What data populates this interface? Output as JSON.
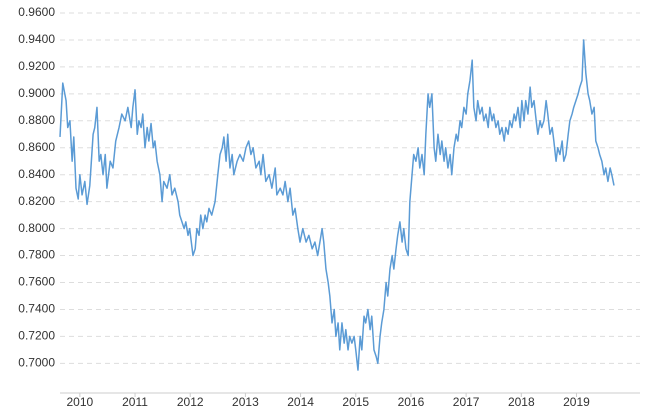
{
  "chart_data": {
    "type": "line",
    "color": "#5b9bd5",
    "grid": true,
    "ylim": [
      0.678,
      0.96
    ],
    "yticks": [
      {
        "value": 0.7,
        "label": "0.7000"
      },
      {
        "value": 0.72,
        "label": "0.7200"
      },
      {
        "value": 0.74,
        "label": "0.7400"
      },
      {
        "value": 0.76,
        "label": "0.7600"
      },
      {
        "value": 0.78,
        "label": "0.7800"
      },
      {
        "value": 0.8,
        "label": "0.8000"
      },
      {
        "value": 0.82,
        "label": "0.8200"
      },
      {
        "value": 0.84,
        "label": "0.8400"
      },
      {
        "value": 0.86,
        "label": "0.8600"
      },
      {
        "value": 0.88,
        "label": "0.8800"
      },
      {
        "value": 0.9,
        "label": "0.9000"
      },
      {
        "value": 0.92,
        "label": "0.9200"
      },
      {
        "value": 0.94,
        "label": "0.9400"
      },
      {
        "value": 0.96,
        "label": "0.9600"
      }
    ],
    "xlim": [
      2009.64,
      2019.68
    ],
    "xticks": [
      2010,
      2011,
      2012,
      2013,
      2014,
      2015,
      2016,
      2017,
      2018,
      2019
    ],
    "x": [
      2009.64,
      2009.69,
      2009.75,
      2009.78,
      2009.82,
      2009.86,
      2009.89,
      2009.93,
      2009.97,
      2010.0,
      2010.04,
      2010.09,
      2010.13,
      2010.18,
      2010.24,
      2010.27,
      2010.31,
      2010.35,
      2010.38,
      2010.42,
      2010.46,
      2010.49,
      2010.55,
      2010.6,
      2010.65,
      2010.71,
      2010.76,
      2010.82,
      2010.87,
      2010.93,
      2010.96,
      2011.0,
      2011.04,
      2011.07,
      2011.11,
      2011.14,
      2011.18,
      2011.22,
      2011.25,
      2011.29,
      2011.33,
      2011.36,
      2011.4,
      2011.45,
      2011.49,
      2011.52,
      2011.58,
      2011.63,
      2011.67,
      2011.72,
      2011.78,
      2011.81,
      2011.85,
      2011.89,
      2011.92,
      2011.96,
      2011.99,
      2012.05,
      2012.09,
      2012.12,
      2012.16,
      2012.19,
      2012.23,
      2012.27,
      2012.3,
      2012.34,
      2012.39,
      2012.45,
      2012.5,
      2012.54,
      2012.58,
      2012.61,
      2012.65,
      2012.68,
      2012.72,
      2012.76,
      2012.79,
      2012.85,
      2012.9,
      2012.96,
      2013.01,
      2013.06,
      2013.1,
      2013.14,
      2013.19,
      2013.25,
      2013.28,
      2013.32,
      2013.37,
      2013.43,
      2013.48,
      2013.54,
      2013.57,
      2013.63,
      2013.68,
      2013.72,
      2013.77,
      2013.81,
      2013.86,
      2013.9,
      2013.95,
      2013.99,
      2014.04,
      2014.1,
      2014.15,
      2014.21,
      2014.26,
      2014.31,
      2014.35,
      2014.39,
      2014.42,
      2014.46,
      2014.5,
      2014.53,
      2014.57,
      2014.61,
      2014.64,
      2014.68,
      2014.71,
      2014.75,
      2014.79,
      2014.82,
      2014.86,
      2014.89,
      2014.93,
      2014.97,
      2015.0,
      2015.04,
      2015.08,
      2015.11,
      2015.15,
      2015.18,
      2015.22,
      2015.26,
      2015.29,
      2015.33,
      2015.37,
      2015.4,
      2015.44,
      2015.47,
      2015.51,
      2015.55,
      2015.58,
      2015.62,
      2015.66,
      2015.69,
      2015.73,
      2015.76,
      2015.8,
      2015.84,
      2015.87,
      2015.91,
      2015.95,
      2015.98,
      2016.02,
      2016.05,
      2016.09,
      2016.13,
      2016.16,
      2016.2,
      2016.24,
      2016.27,
      2016.31,
      2016.34,
      2016.38,
      2016.42,
      2016.45,
      2016.49,
      2016.53,
      2016.56,
      2016.6,
      2016.63,
      2016.67,
      2016.71,
      2016.74,
      2016.78,
      2016.82,
      2016.85,
      2016.89,
      2016.92,
      2016.96,
      2017.0,
      2017.03,
      2017.07,
      2017.11,
      2017.14,
      2017.18,
      2017.21,
      2017.25,
      2017.29,
      2017.32,
      2017.36,
      2017.4,
      2017.43,
      2017.47,
      2017.5,
      2017.54,
      2017.58,
      2017.61,
      2017.65,
      2017.69,
      2017.72,
      2017.76,
      2017.79,
      2017.83,
      2017.87,
      2017.9,
      2017.94,
      2017.98,
      2018.01,
      2018.05,
      2018.08,
      2018.12,
      2018.16,
      2018.19,
      2018.23,
      2018.27,
      2018.3,
      2018.34,
      2018.37,
      2018.41,
      2018.45,
      2018.48,
      2018.52,
      2018.56,
      2018.59,
      2018.63,
      2018.66,
      2018.7,
      2018.74,
      2018.77,
      2018.81,
      2018.85,
      2018.88,
      2018.92,
      2018.95,
      2018.99,
      2019.03,
      2019.06,
      2019.1,
      2019.13,
      2019.17,
      2019.21,
      2019.24,
      2019.28,
      2019.32,
      2019.35,
      2019.39,
      2019.42,
      2019.46,
      2019.5,
      2019.53,
      2019.57,
      2019.61,
      2019.64,
      2019.68
    ],
    "values": [
      0.868,
      0.908,
      0.895,
      0.875,
      0.88,
      0.85,
      0.868,
      0.83,
      0.822,
      0.84,
      0.825,
      0.835,
      0.818,
      0.832,
      0.87,
      0.875,
      0.89,
      0.85,
      0.855,
      0.84,
      0.855,
      0.83,
      0.85,
      0.845,
      0.865,
      0.875,
      0.885,
      0.88,
      0.89,
      0.875,
      0.89,
      0.903,
      0.87,
      0.88,
      0.875,
      0.885,
      0.86,
      0.875,
      0.865,
      0.878,
      0.86,
      0.865,
      0.85,
      0.84,
      0.82,
      0.835,
      0.83,
      0.84,
      0.825,
      0.83,
      0.82,
      0.81,
      0.805,
      0.8,
      0.805,
      0.795,
      0.8,
      0.78,
      0.785,
      0.8,
      0.795,
      0.81,
      0.8,
      0.81,
      0.805,
      0.815,
      0.81,
      0.82,
      0.84,
      0.855,
      0.86,
      0.868,
      0.85,
      0.87,
      0.845,
      0.855,
      0.84,
      0.85,
      0.855,
      0.85,
      0.86,
      0.865,
      0.855,
      0.86,
      0.845,
      0.85,
      0.84,
      0.855,
      0.835,
      0.84,
      0.83,
      0.845,
      0.825,
      0.83,
      0.825,
      0.835,
      0.82,
      0.83,
      0.81,
      0.815,
      0.8,
      0.79,
      0.8,
      0.79,
      0.795,
      0.785,
      0.79,
      0.78,
      0.79,
      0.8,
      0.79,
      0.77,
      0.76,
      0.75,
      0.73,
      0.74,
      0.72,
      0.73,
      0.71,
      0.73,
      0.715,
      0.725,
      0.71,
      0.72,
      0.715,
      0.72,
      0.71,
      0.695,
      0.72,
      0.71,
      0.735,
      0.73,
      0.74,
      0.725,
      0.735,
      0.71,
      0.705,
      0.7,
      0.72,
      0.73,
      0.74,
      0.76,
      0.75,
      0.77,
      0.78,
      0.77,
      0.785,
      0.795,
      0.805,
      0.79,
      0.8,
      0.785,
      0.78,
      0.82,
      0.84,
      0.855,
      0.85,
      0.86,
      0.845,
      0.855,
      0.84,
      0.87,
      0.9,
      0.89,
      0.9,
      0.86,
      0.85,
      0.87,
      0.855,
      0.865,
      0.85,
      0.86,
      0.845,
      0.855,
      0.84,
      0.86,
      0.87,
      0.865,
      0.88,
      0.875,
      0.89,
      0.885,
      0.9,
      0.91,
      0.925,
      0.89,
      0.88,
      0.895,
      0.885,
      0.89,
      0.88,
      0.885,
      0.875,
      0.89,
      0.88,
      0.885,
      0.875,
      0.88,
      0.87,
      0.875,
      0.865,
      0.875,
      0.87,
      0.88,
      0.875,
      0.885,
      0.88,
      0.89,
      0.875,
      0.895,
      0.88,
      0.895,
      0.885,
      0.905,
      0.89,
      0.895,
      0.88,
      0.87,
      0.88,
      0.875,
      0.88,
      0.895,
      0.885,
      0.87,
      0.875,
      0.865,
      0.85,
      0.86,
      0.855,
      0.865,
      0.85,
      0.855,
      0.87,
      0.88,
      0.885,
      0.89,
      0.895,
      0.9,
      0.905,
      0.91,
      0.94,
      0.915,
      0.9,
      0.895,
      0.885,
      0.89,
      0.865,
      0.86,
      0.855,
      0.85,
      0.84,
      0.845,
      0.835,
      0.845,
      0.84,
      0.832
    ]
  }
}
